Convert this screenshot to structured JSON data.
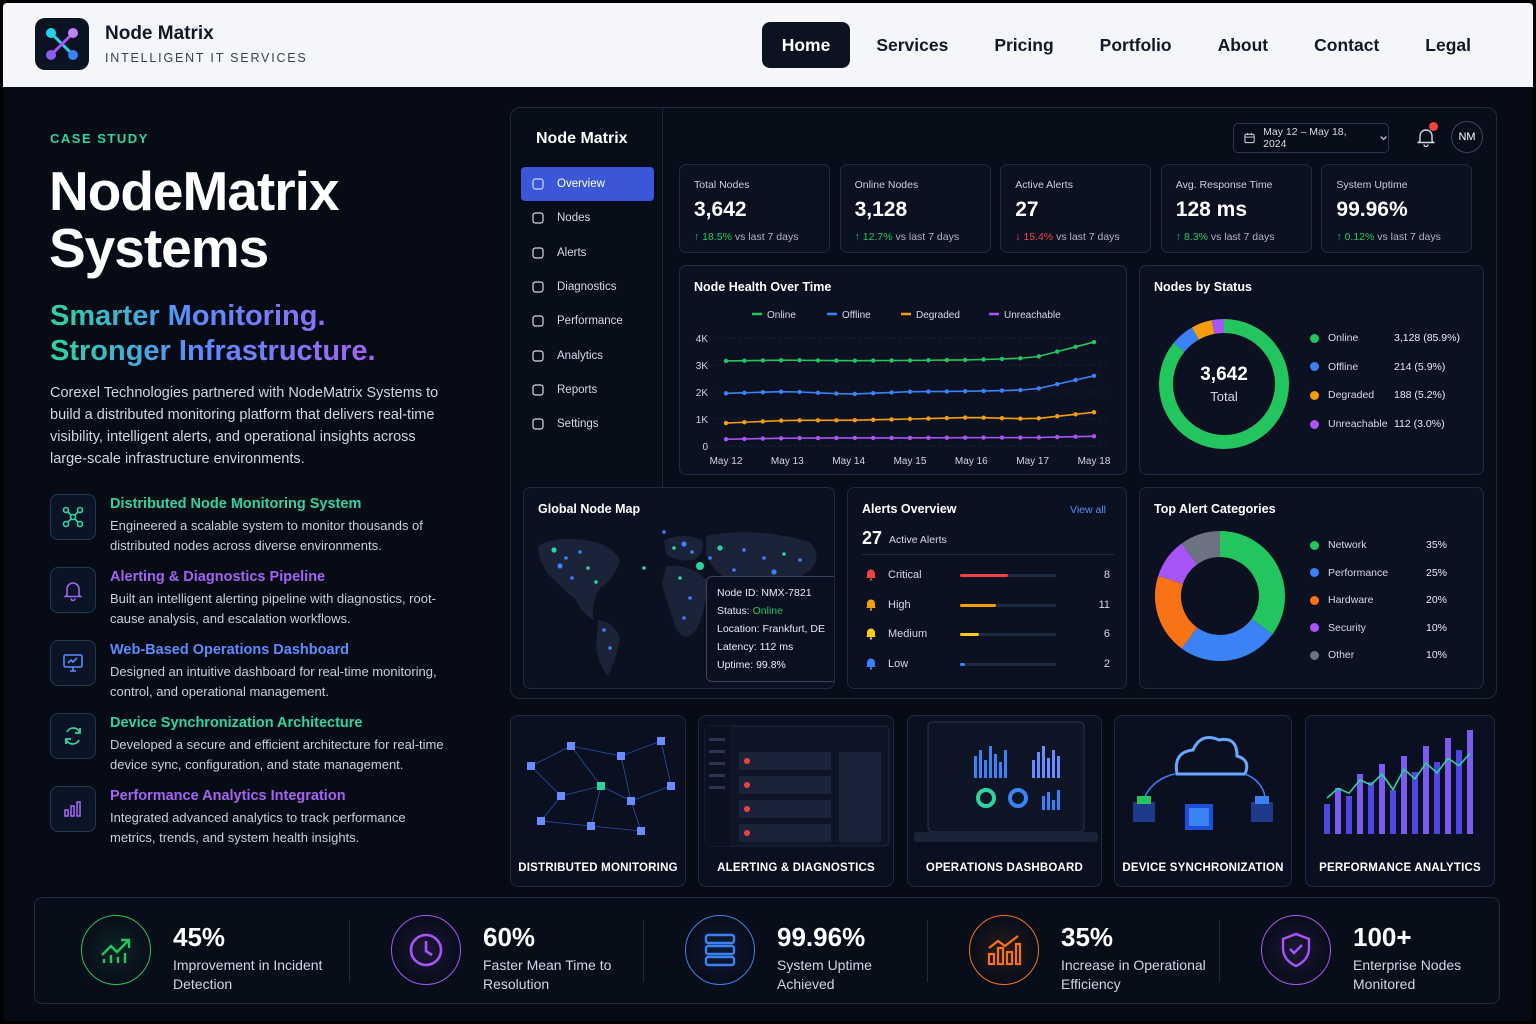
{
  "nav": {
    "brand": "Node Matrix",
    "tagline": "INTELLIGENT IT SERVICES",
    "links": [
      "Home",
      "Services",
      "Pricing",
      "Portfolio",
      "About",
      "Contact",
      "Legal"
    ],
    "active": "Home"
  },
  "hero": {
    "eyebrow": "CASE STUDY",
    "title_line1": "NodeMatrix",
    "title_line2": "Systems",
    "tagline_line1": "Smarter Monitoring.",
    "tagline_line2": "Stronger Infrastructure.",
    "intro": "Corexel Technologies partnered with NodeMatrix Systems to build a distributed monitoring platform that delivers real-time visibility, intelligent alerts, and operational insights across large-scale infrastructure environments."
  },
  "features": [
    {
      "title": "Distributed Node Monitoring System",
      "desc": "Engineered a scalable system to monitor thousands of distributed nodes across diverse environments.",
      "color": "#2dd4a0",
      "icon": "network-icon"
    },
    {
      "title": "Alerting & Diagnostics Pipeline",
      "desc": "Built an intelligent alerting pipeline with diagnostics, root-cause analysis, and escalation workflows.",
      "color": "#a463f2",
      "icon": "bell-icon"
    },
    {
      "title": "Web-Based Operations Dashboard",
      "desc": "Designed an intuitive dashboard for real-time monitoring, control, and operational management.",
      "color": "#5b8cff",
      "icon": "monitor-icon"
    },
    {
      "title": "Device Synchronization Architecture",
      "desc": "Developed a secure and efficient architecture for real-time device sync, configuration, and state management.",
      "color": "#2dd4a0",
      "icon": "sync-icon"
    },
    {
      "title": "Performance Analytics Integration",
      "desc": "Integrated advanced analytics to track performance metrics, trends, and system health insights.",
      "color": "#a463f2",
      "icon": "bar-chart-icon"
    }
  ],
  "dashboard": {
    "brand": "Node Matrix",
    "sidebar": [
      "Overview",
      "Nodes",
      "Alerts",
      "Diagnostics",
      "Performance",
      "Analytics",
      "Reports",
      "Settings"
    ],
    "date_range": "May 12 – May 18, 2024",
    "avatar": "NM",
    "kpis": [
      {
        "label": "Total Nodes",
        "value": "3,642",
        "change": "18.5%",
        "dir": "up",
        "suffix": "vs last 7 days"
      },
      {
        "label": "Online Nodes",
        "value": "3,128",
        "change": "12.7%",
        "dir": "up",
        "suffix": "vs last 7 days"
      },
      {
        "label": "Active Alerts",
        "value": "27",
        "change": "15.4%",
        "dir": "down",
        "suffix": "vs last 7 days"
      },
      {
        "label": "Avg. Response Time",
        "value": "128 ms",
        "change": "8.3%",
        "dir": "up",
        "suffix": "vs last 7 days"
      },
      {
        "label": "System Uptime",
        "value": "99.96%",
        "change": "0.12%",
        "dir": "up",
        "suffix": "vs last 7 days"
      }
    ],
    "health_title": "Node Health Over Time",
    "status_title": "Nodes by Status",
    "status_center_value": "3,642",
    "status_center_label": "Total",
    "status_rows": [
      {
        "name": "Online",
        "value": "3,128 (85.9%)",
        "color": "#22c55e",
        "share": 85.9
      },
      {
        "name": "Offline",
        "value": "214 (5.9%)",
        "color": "#3b82f6",
        "share": 5.9
      },
      {
        "name": "Degraded",
        "value": "188 (5.2%)",
        "color": "#f59e0b",
        "share": 5.2
      },
      {
        "name": "Unreachable",
        "value": "112 (3.0%)",
        "color": "#a855f7",
        "share": 3.0
      }
    ],
    "map_title": "Global Node Map",
    "tooltip": {
      "node_id": "Node ID: NMX-7821",
      "status_label": "Status:",
      "status_value": "Online",
      "location": "Location: Frankfurt, DE",
      "latency": "Latency: 112 ms",
      "uptime": "Uptime: 99.8%"
    },
    "alerts_title": "Alerts Overview",
    "alerts_view_all": "View all",
    "alerts_count": "27",
    "alerts_count_label": "Active Alerts",
    "alerts": [
      {
        "name": "Critical",
        "count": "8",
        "color": "#ef4444",
        "level": 0.5
      },
      {
        "name": "High",
        "count": "11",
        "color": "#f59e0b",
        "level": 0.38
      },
      {
        "name": "Medium",
        "count": "6",
        "color": "#facc15",
        "level": 0.2
      },
      {
        "name": "Low",
        "count": "2",
        "color": "#3b82f6",
        "level": 0.05
      }
    ],
    "categories_title": "Top Alert Categories",
    "categories": [
      {
        "name": "Network",
        "pct": "35%",
        "color": "#22c55e",
        "share": 35
      },
      {
        "name": "Performance",
        "pct": "25%",
        "color": "#3b82f6",
        "share": 25
      },
      {
        "name": "Hardware",
        "pct": "20%",
        "color": "#f97316",
        "share": 20
      },
      {
        "name": "Security",
        "pct": "10%",
        "color": "#a855f7",
        "share": 10
      },
      {
        "name": "Other",
        "pct": "10%",
        "color": "#6b7280",
        "share": 10
      }
    ]
  },
  "chart_data": {
    "type": "line",
    "title": "Node Health Over Time",
    "categories": [
      "May 12",
      "May 13",
      "May 14",
      "May 15",
      "May 16",
      "May 17",
      "May 18"
    ],
    "yticks": [
      "0",
      "1K",
      "2K",
      "3K",
      "4K"
    ],
    "ylim": [
      0,
      4000
    ],
    "legend_position": "top",
    "series": [
      {
        "name": "Online",
        "color": "#22c55e",
        "values": [
          3150,
          3180,
          3160,
          3170,
          3190,
          3260,
          3850
        ]
      },
      {
        "name": "Offline",
        "color": "#3b82f6",
        "values": [
          1950,
          2020,
          1920,
          2010,
          2030,
          2080,
          2600
        ]
      },
      {
        "name": "Degraded",
        "color": "#f59e0b",
        "values": [
          850,
          950,
          950,
          1000,
          1060,
          1000,
          1250
        ]
      },
      {
        "name": "Unreachable",
        "color": "#a855f7",
        "values": [
          250,
          290,
          300,
          300,
          310,
          310,
          360
        ]
      }
    ]
  },
  "thumbs": [
    "DISTRIBUTED MONITORING",
    "ALERTING & DIAGNOSTICS",
    "OPERATIONS DASHBOARD",
    "DEVICE SYNCHRONIZATION",
    "PERFORMANCE ANALYTICS"
  ],
  "stats": [
    {
      "value": "45%",
      "desc": "Improvement in Incident Detection",
      "color": "#22c55e",
      "icon": "trend-up-icon"
    },
    {
      "value": "60%",
      "desc": "Faster Mean Time to Resolution",
      "color": "#a855f7",
      "icon": "clock-icon"
    },
    {
      "value": "99.96%",
      "desc": "System Uptime Achieved",
      "color": "#3b82f6",
      "icon": "server-icon"
    },
    {
      "value": "35%",
      "desc": "Increase in Operational Efficiency",
      "color": "#f97316",
      "icon": "growth-chart-icon"
    },
    {
      "value": "100+",
      "desc": "Enterprise Nodes Monitored",
      "color": "#a855f7",
      "icon": "shield-check-icon"
    }
  ]
}
